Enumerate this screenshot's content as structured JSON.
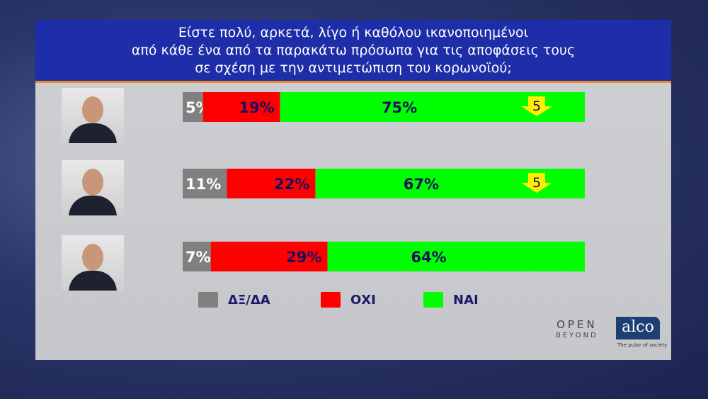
{
  "header": {
    "title_lines": [
      "Είστε πολύ, αρκετά, λίγο ή καθόλου ικανοποιημένοι",
      "από κάθε ένα από τα παρακάτω πρόσωπα για τις αποφάσεις τους",
      "σε σχέση με την αντιμετώπιση του κορωνοϊού;"
    ]
  },
  "chart_data": {
    "type": "bar",
    "stacked": true,
    "orientation": "horizontal",
    "categories": [
      "Person 1",
      "Person 2",
      "Person 3"
    ],
    "series": [
      {
        "name": "ΔΞ/ΔΑ",
        "color": "#808080",
        "values": [
          5,
          11,
          7
        ],
        "labels": [
          "5%",
          "11%",
          "7%"
        ]
      },
      {
        "name": "ΟΧΙ",
        "color": "#ff0000",
        "values": [
          19,
          22,
          29
        ],
        "labels": [
          "19%",
          "22%",
          "29%"
        ]
      },
      {
        "name": "ΝΑΙ",
        "color": "#00ff00",
        "values": [
          75,
          67,
          64
        ],
        "labels": [
          "75%",
          "67%",
          "64%"
        ]
      }
    ],
    "change_indicators": [
      {
        "row": 0,
        "direction": "down",
        "value": "5"
      },
      {
        "row": 1,
        "direction": "down",
        "value": "5"
      }
    ],
    "legend_position": "bottom"
  },
  "legend": [
    {
      "label": "ΔΞ/ΔΑ",
      "color": "#808080"
    },
    {
      "label": "ΟΧΙ",
      "color": "#ff0000"
    },
    {
      "label": "ΝΑΙ",
      "color": "#00ff00"
    }
  ],
  "logos": {
    "open_top": "OPEN",
    "open_bottom": "BEYOND",
    "alco": "alco",
    "alco_tagline": "The pulse of society"
  }
}
